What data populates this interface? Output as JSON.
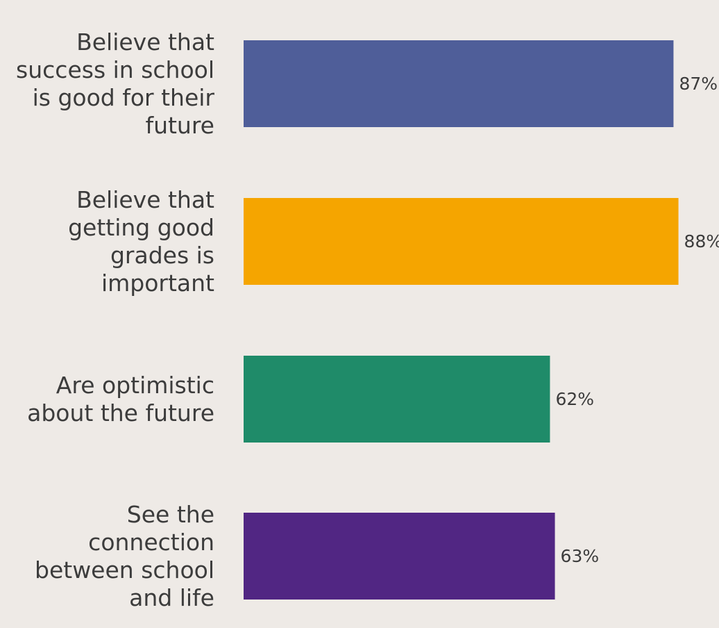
{
  "chart_data": {
    "type": "bar",
    "orientation": "horizontal",
    "categories": [
      [
        "Believe that",
        "success in school",
        "is good for their",
        "future"
      ],
      [
        "Believe that",
        "getting good",
        "grades is",
        "important"
      ],
      [
        "Are optimistic",
        "about the future"
      ],
      [
        "See the",
        "connection",
        "between school",
        "and life"
      ]
    ],
    "values": [
      87,
      88,
      62,
      63
    ],
    "value_labels": [
      "87%",
      "88%",
      "62%",
      "63%"
    ],
    "colors": [
      "#4f5e99",
      "#f5a500",
      "#1f8b69",
      "#512683"
    ],
    "xlim": [
      0,
      100
    ],
    "grid": false,
    "legend": false
  }
}
